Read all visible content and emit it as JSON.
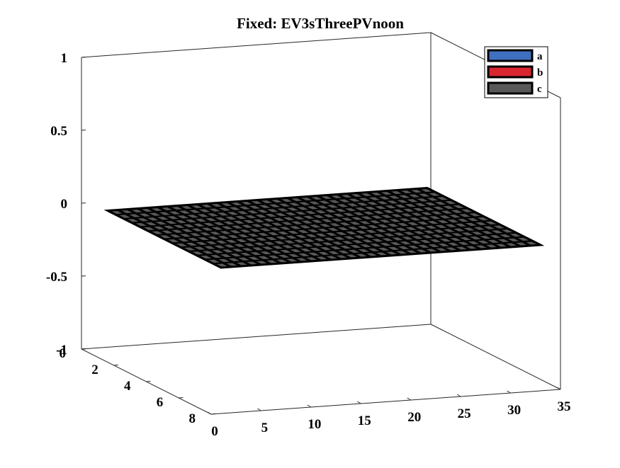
{
  "chart_data": {
    "type": "surface",
    "title": "Fixed: EV3sThreePVnoon",
    "xlabel": "",
    "ylabel": "",
    "zlabel": "",
    "x_ticks": [
      "0",
      "5",
      "10",
      "15",
      "20",
      "25",
      "30",
      "35"
    ],
    "y_ticks": [
      "0",
      "2",
      "4",
      "6",
      "8"
    ],
    "z_ticks": [
      "1",
      "0.5",
      "0",
      "-0.5",
      "-1"
    ],
    "xlim": [
      0,
      35
    ],
    "ylim": [
      0,
      8
    ],
    "zlim": [
      -1,
      1
    ],
    "grid": false,
    "legend_position": "top-right",
    "series": [
      {
        "name": "a",
        "color": "#3f6fbf",
        "x_range": [
          1,
          33
        ],
        "y_range": [
          1,
          8
        ],
        "z": 0
      },
      {
        "name": "b",
        "color": "#d9262f",
        "x_range": [
          1,
          33
        ],
        "y_range": [
          1,
          8
        ],
        "z": 0
      },
      {
        "name": "c",
        "color": "#595959",
        "x_range": [
          1,
          33
        ],
        "y_range": [
          1,
          8
        ],
        "z": 0
      }
    ]
  }
}
